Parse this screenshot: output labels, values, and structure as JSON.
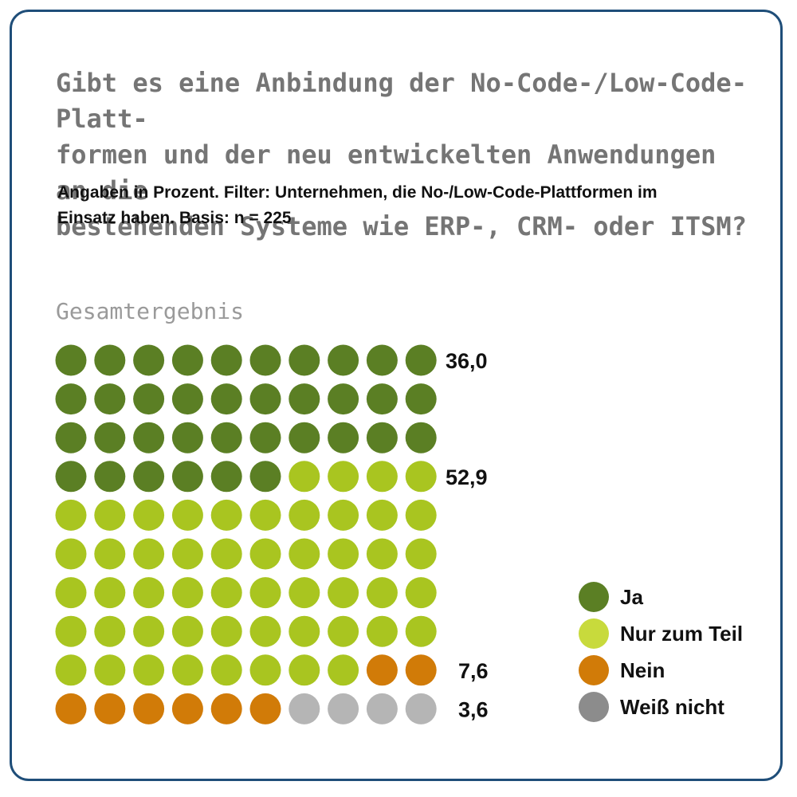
{
  "title": "Gibt es eine Anbindung der No-Code-/Low-Code-Platt-formen und der neu entwickelten Anwendungen an die bestehenden Systeme wie ERP-, CRM- oder ITSM?",
  "title_lines": [
    "Gibt es eine Anbindung der No-Code-/Low-Code-Platt-",
    "formen und der neu entwickelten Anwendungen an die",
    "bestehenden Systeme wie ERP-, CRM- oder ITSM?"
  ],
  "subtitle_lines": [
    "Angaben in Prozent. Filter: Unternehmen, die No-/Low-Code-Plattformen im",
    "Einsatz haben. Basis: n = 225"
  ],
  "section_label": "Gesamtergebnis",
  "chart_data": {
    "type": "waffle",
    "grid": {
      "rows": 10,
      "cols": 10
    },
    "series": [
      {
        "name": "Ja",
        "value": 36.0,
        "label": "36,0",
        "dots": 36,
        "color": "#5b7f24"
      },
      {
        "name": "Nur zum Teil",
        "value": 52.9,
        "label": "52,9",
        "dots": 52,
        "color": "#a9c520"
      },
      {
        "name": "Nein",
        "value": 7.6,
        "label": "7,6",
        "dots": 8,
        "color": "#d17b08"
      },
      {
        "name": "Weiß nicht",
        "value": 3.6,
        "label": "3,6",
        "dots": 4,
        "color": "#b5b5b5"
      }
    ],
    "legend": {
      "position": "bottom-right",
      "items": [
        {
          "label": "Ja",
          "color": "#5b7f24"
        },
        {
          "label": "Nur zum Teil",
          "color": "#c8da3c"
        },
        {
          "label": "Nein",
          "color": "#d17b08"
        },
        {
          "label": "Weiß nicht",
          "color": "#8c8c8c"
        }
      ]
    }
  }
}
